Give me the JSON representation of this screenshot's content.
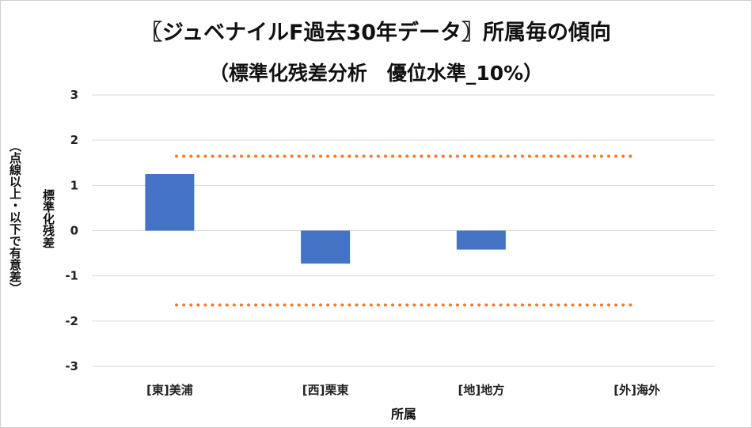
{
  "chart_data": {
    "type": "bar",
    "title": "〖ジュベナイルF過去30年データ〗所属毎の傾向",
    "subtitle": "（標準化残差分析　優位水準_10%）",
    "xlabel": "所属",
    "ylabel_main": "標準化残差",
    "ylabel_sub": "（点線以上・以下で有意差）",
    "categories": [
      "[東]美浦",
      "[西]栗東",
      "[地]地方",
      "[外]海外"
    ],
    "values": [
      1.25,
      -0.73,
      -0.42,
      0
    ],
    "ylim": [
      -3,
      3
    ],
    "yticks": [
      3,
      2,
      1,
      0,
      -1,
      -2,
      -3
    ],
    "threshold_lines": [
      1.645,
      -1.645
    ],
    "grid": true,
    "legend": "none"
  },
  "colors": {
    "bar": "#4472C4",
    "threshold": "#ED7D31",
    "grid": "#D9D9D9"
  }
}
